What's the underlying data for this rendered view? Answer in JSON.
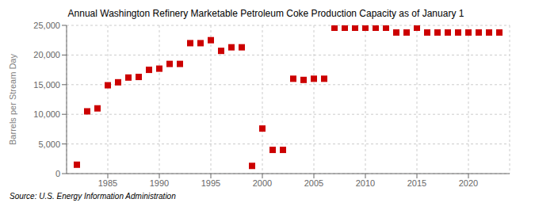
{
  "chart_data": {
    "type": "scatter",
    "title": "Annual Washington Refinery Marketable Petroleum Coke Production Capacity as of January 1",
    "y_label": "Barrels per Stream Day",
    "source": "Source: U.S. Energy Information Administration",
    "x": [
      1982,
      1983,
      1984,
      1985,
      1986,
      1987,
      1988,
      1989,
      1990,
      1991,
      1992,
      1993,
      1994,
      1995,
      1996,
      1997,
      1998,
      1999,
      2000,
      2001,
      2002,
      2003,
      2004,
      2005,
      2006,
      2007,
      2008,
      2009,
      2010,
      2011,
      2012,
      2013,
      2014,
      2015,
      2016,
      2017,
      2018,
      2019,
      2020,
      2021,
      2022,
      2023
    ],
    "values": [
      1500,
      10500,
      11000,
      14900,
      15400,
      16200,
      16300,
      17500,
      17700,
      18500,
      18500,
      22000,
      22000,
      22500,
      20700,
      21300,
      21300,
      1300,
      7600,
      4000,
      4000,
      16000,
      15800,
      16000,
      16000,
      24600,
      24600,
      24600,
      24600,
      24600,
      24600,
      23800,
      23800,
      24600,
      23800,
      23800,
      23800,
      23800,
      23800,
      23800,
      23800,
      23800
    ],
    "color": "#cc0000",
    "marker": "square",
    "xlim": [
      1981,
      2024
    ],
    "xticks": [
      1985,
      1990,
      1995,
      2000,
      2005,
      2010,
      2015,
      2020
    ],
    "ylim": [
      0,
      25000
    ],
    "yticks": [
      0,
      {
        "value": 5000,
        "label": "5,000"
      },
      {
        "value": 10000,
        "label": "10,000"
      },
      {
        "value": 15000,
        "label": "15,000"
      },
      {
        "value": 20000,
        "label": "20,000"
      },
      {
        "value": 25000,
        "label": "25,000"
      }
    ],
    "grid": true
  }
}
